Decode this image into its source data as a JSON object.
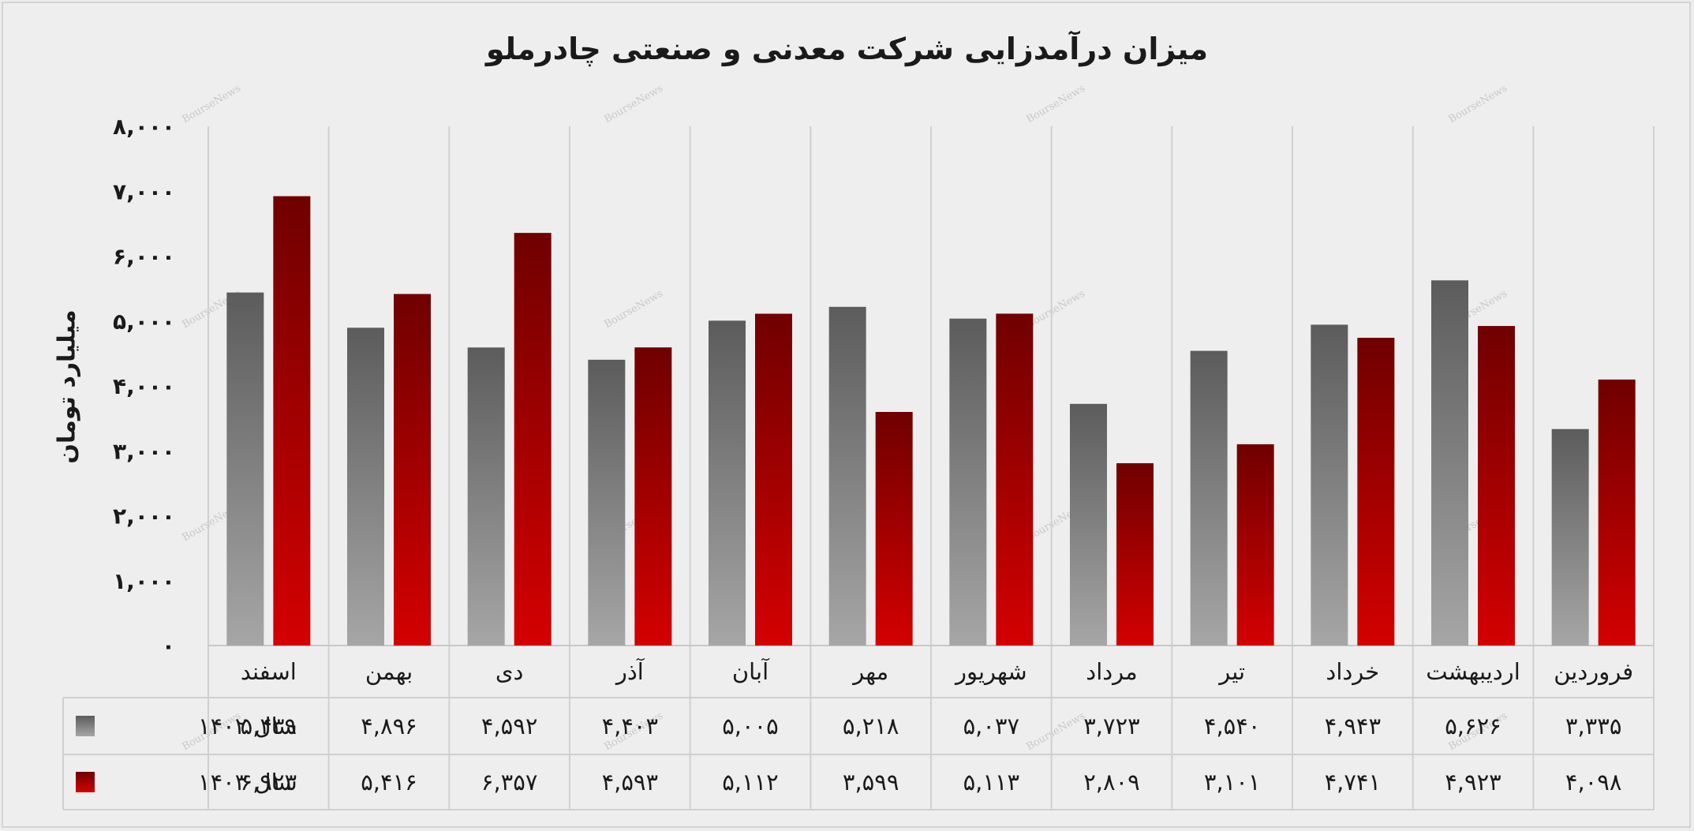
{
  "chart_data": {
    "type": "bar",
    "title": "میزان درآمدزایی شرکت معدنی و صنعتی چادرملو",
    "ylabel": "میلیارد تومان",
    "xlabel": "",
    "ylim": [
      0,
      8000
    ],
    "yticks": [
      0,
      1000,
      2000,
      3000,
      4000,
      5000,
      6000,
      7000,
      8000
    ],
    "ytick_labels": [
      "۰",
      "۱,۰۰۰",
      "۲,۰۰۰",
      "۳,۰۰۰",
      "۴,۰۰۰",
      "۵,۰۰۰",
      "۶,۰۰۰",
      "۷,۰۰۰",
      "۸,۰۰۰"
    ],
    "categories": [
      "فروردین",
      "اردیبهشت",
      "خرداد",
      "تیر",
      "مرداد",
      "شهریور",
      "مهر",
      "آبان",
      "آذر",
      "دی",
      "بهمن",
      "اسفند"
    ],
    "series": [
      {
        "name": "سال ۱۴۰۲",
        "color_top": "#5c5c5c",
        "color_bottom": "#a6a6a6",
        "values": [
          3335,
          5626,
          4943,
          4540,
          3723,
          5037,
          5218,
          5005,
          4403,
          4592,
          4896,
          5439
        ],
        "value_labels": [
          "۳,۳۳۵",
          "۵,۶۲۶",
          "۴,۹۴۳",
          "۴,۵۴۰",
          "۳,۷۲۳",
          "۵,۰۳۷",
          "۵,۲۱۸",
          "۵,۰۰۵",
          "۴,۴۰۳",
          "۴,۵۹۲",
          "۴,۸۹۶",
          "۵,۴۳۹"
        ]
      },
      {
        "name": "سال ۱۴۰۳",
        "color_top": "#700000",
        "color_bottom": "#d40000",
        "values": [
          4098,
          4923,
          4741,
          3101,
          2809,
          5113,
          3599,
          5112,
          4593,
          6357,
          5416,
          6923
        ],
        "value_labels": [
          "۴,۰۹۸",
          "۴,۹۲۳",
          "۴,۷۴۱",
          "۳,۱۰۱",
          "۲,۸۰۹",
          "۵,۱۱۳",
          "۳,۵۹۹",
          "۵,۱۱۲",
          "۴,۵۹۳",
          "۶,۳۵۷",
          "۵,۴۱۶",
          "۶,۹۲۳"
        ]
      }
    ],
    "grid": true,
    "legend": "data-table-left",
    "watermark": "BourseNews"
  }
}
